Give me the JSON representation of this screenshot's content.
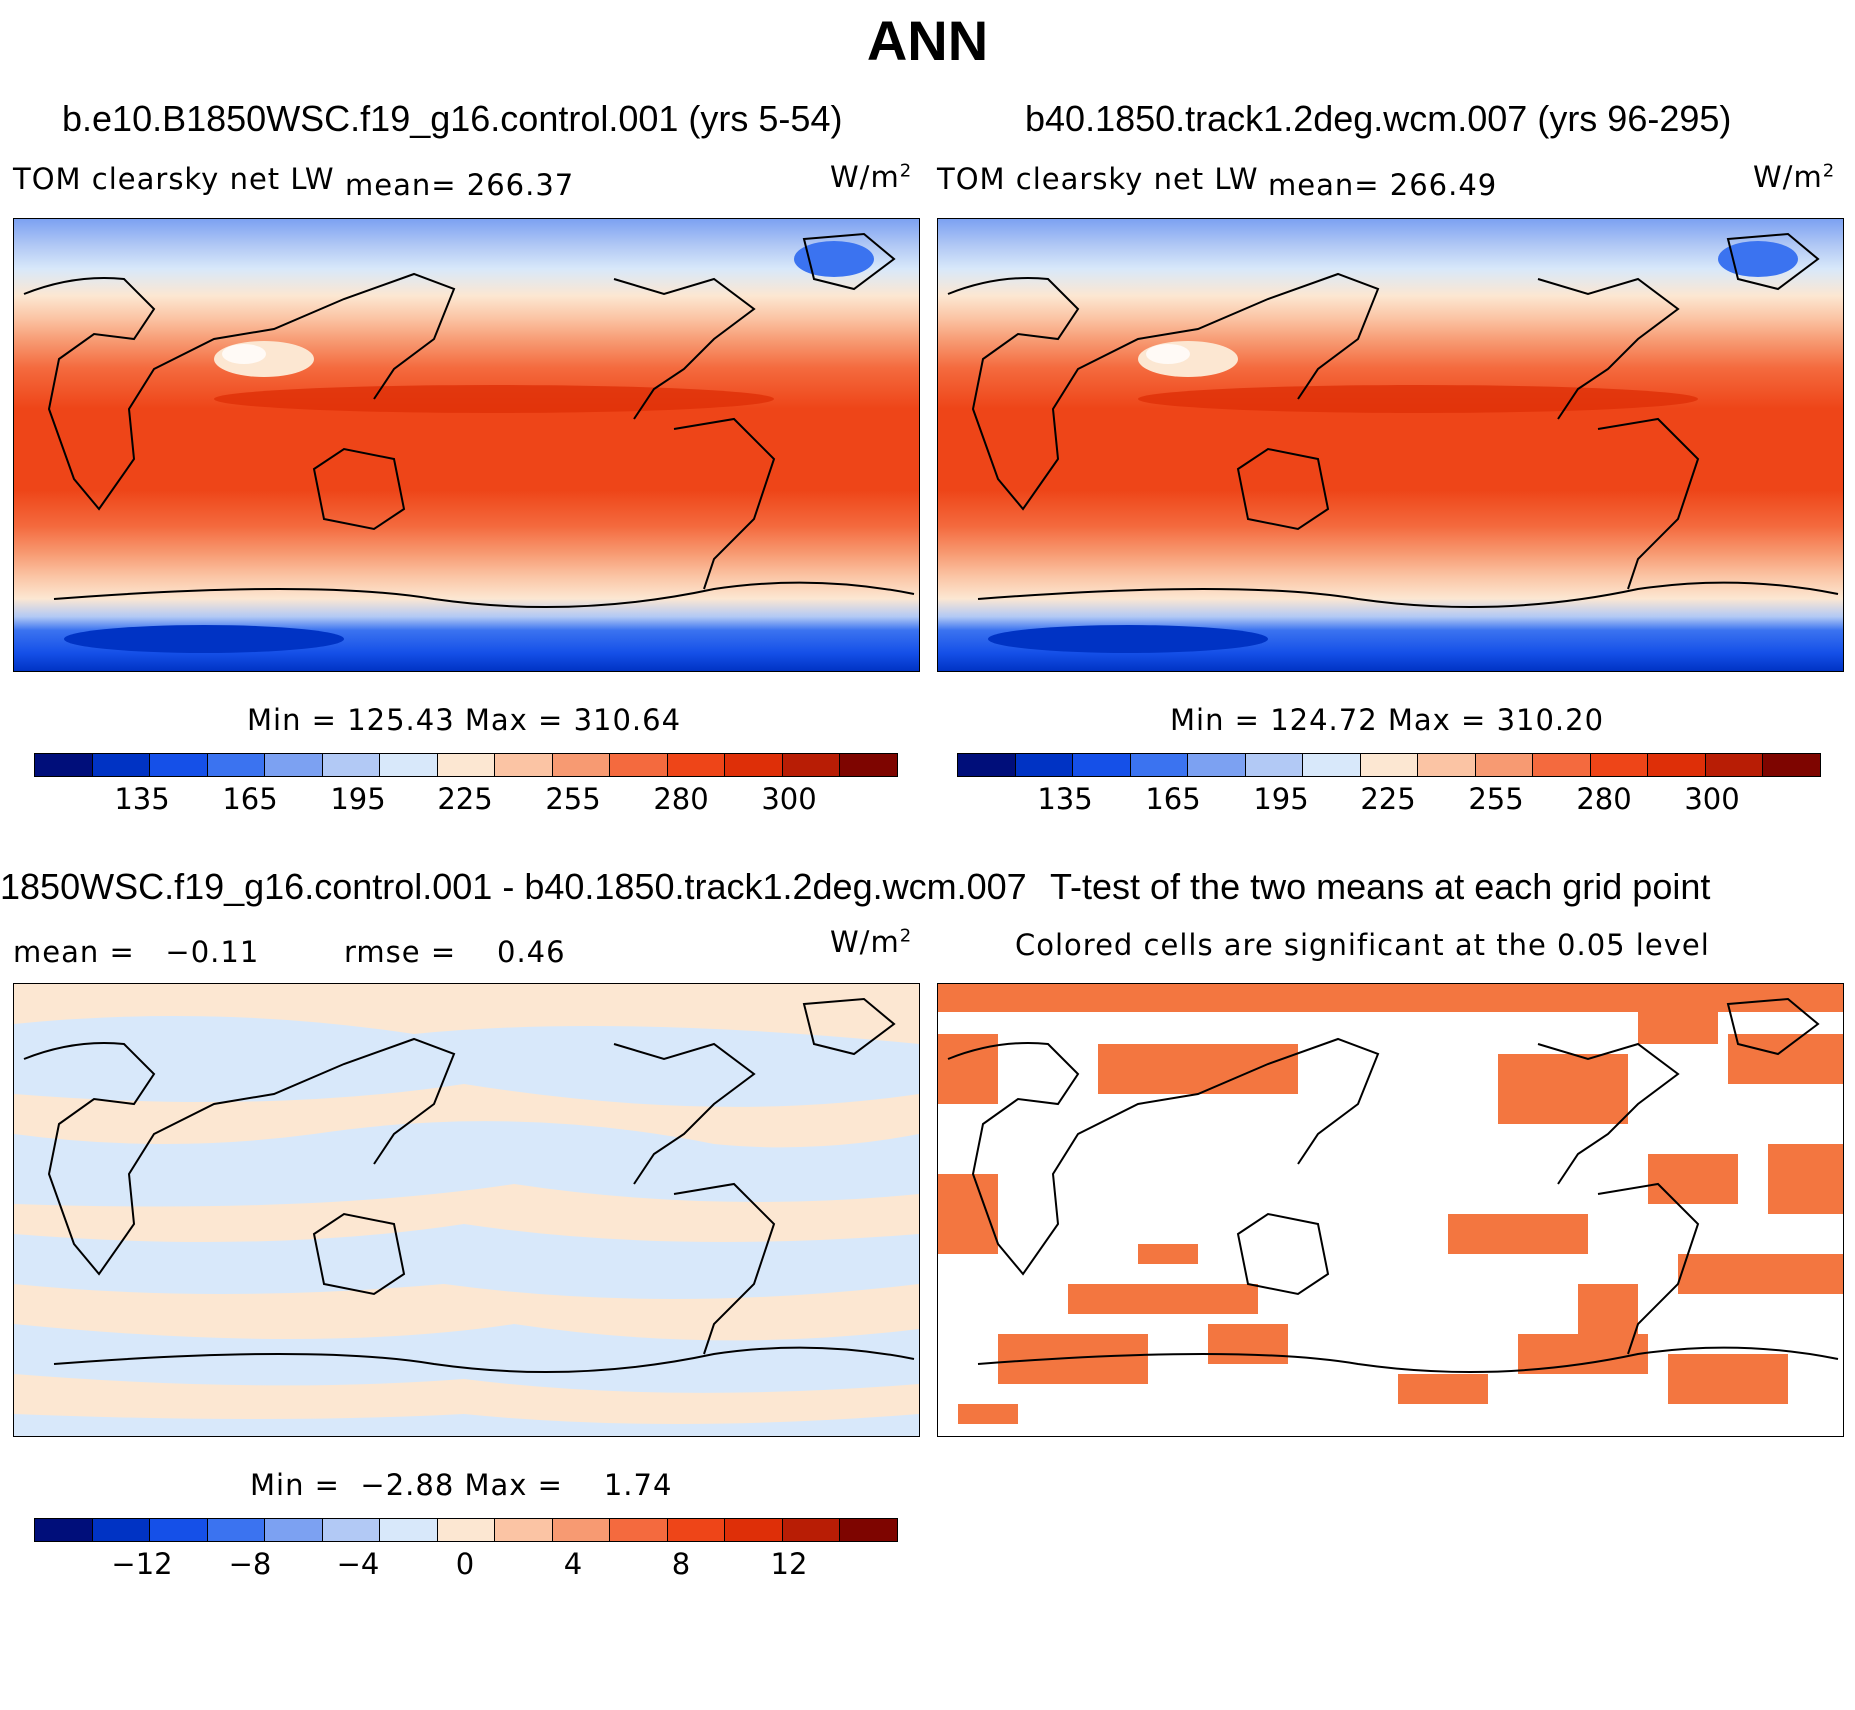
{
  "page_title": "ANN",
  "panels": [
    {
      "case": "b.e10.B1850WSC.f19_g16.control.001 (yrs 5-54)",
      "variable": "TOM clearsky net LW",
      "mean_text": "mean= 266.37",
      "units": "W/m",
      "units_exp": "2",
      "minmax": "Min = 125.43 Max = 310.64",
      "colorbar_ticks": [
        "135",
        "165",
        "195",
        "225",
        "255",
        "280",
        "300"
      ]
    },
    {
      "case": "b40.1850.track1.2deg.wcm.007 (yrs 96-295)",
      "variable": "TOM clearsky net LW",
      "mean_text": "mean= 266.49",
      "units": "W/m",
      "units_exp": "2",
      "minmax": "Min = 124.72 Max = 310.20",
      "colorbar_ticks": [
        "135",
        "165",
        "195",
        "225",
        "255",
        "280",
        "300"
      ]
    },
    {
      "case": "1850WSC.f19_g16.control.001 - b40.1850.track1.2deg.wcm.007",
      "mean_text": "mean =   −0.11",
      "rmse_text": "rmse =    0.46",
      "units": "W/m",
      "units_exp": "2",
      "minmax": "Min =  −2.88 Max =    1.74",
      "colorbar_ticks": [
        "−12",
        "−8",
        "−4",
        "0",
        "4",
        "8",
        "12"
      ]
    },
    {
      "case": "T-test of the two means at each grid point",
      "note": "Colored cells are significant at the 0.05 level"
    }
  ],
  "palette": [
    "#000e7a",
    "#0033c4",
    "#1550e8",
    "#3b73f0",
    "#7ca1f2",
    "#b2c9f5",
    "#d8e8fa",
    "#fce7d2",
    "#fbc4a4",
    "#f79a72",
    "#f46a3e",
    "#ee4518",
    "#de2f08",
    "#b81d05",
    "#7e0500"
  ],
  "significance_color": "#f37640",
  "background_land_color": "#ffffff"
}
